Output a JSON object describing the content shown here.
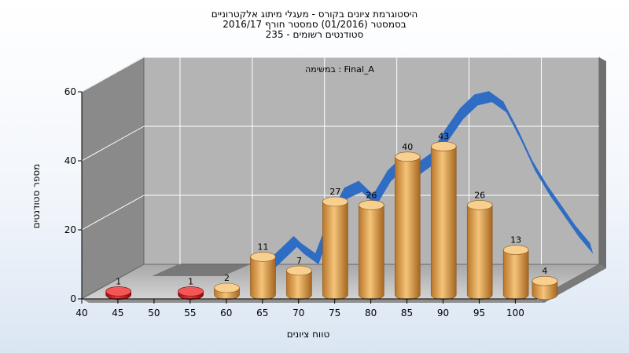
{
  "chart_data": {
    "type": "bar",
    "title_lines": [
      "היסטוגרמת ציונים בקורס - מעגלי מיתוג אלקטרוניים",
      "בסמסטר  (01/2016)  סמסטר חורף 2016/17",
      "סטודנטים רשומים - 235"
    ],
    "annotation": "במשימה : Final_A",
    "xlabel": "טווח ציונים",
    "ylabel": "מספר סטודנטים",
    "ylim": [
      0,
      60
    ],
    "yticks": [
      0,
      20,
      40,
      60
    ],
    "xticks": [
      "40",
      "45",
      "50",
      "55",
      "60",
      "65",
      "70",
      "75",
      "80",
      "85",
      "90",
      "95",
      "100"
    ],
    "bars": [
      {
        "x": 42.5,
        "value": 1,
        "color": "#d41616"
      },
      {
        "x": 52.5,
        "value": 1,
        "color": "#d41616"
      },
      {
        "x": 57.5,
        "value": 2,
        "color": "#e3a44d"
      },
      {
        "x": 62.5,
        "value": 11,
        "color": "#e3a44d"
      },
      {
        "x": 67.5,
        "value": 7,
        "color": "#e3a44d"
      },
      {
        "x": 72.5,
        "value": 27,
        "color": "#e3a44d"
      },
      {
        "x": 77.5,
        "value": 26,
        "color": "#e3a44d"
      },
      {
        "x": 82.5,
        "value": 40,
        "color": "#e3a44d"
      },
      {
        "x": 87.5,
        "value": 43,
        "color": "#e3a44d"
      },
      {
        "x": 92.5,
        "value": 26,
        "color": "#e3a44d"
      },
      {
        "x": 97.5,
        "value": 13,
        "color": "#e3a44d"
      },
      {
        "x": 101.5,
        "value": 4,
        "color": "#e3a44d"
      }
    ],
    "curve": {
      "color": "#2f6cc4",
      "points": [
        [
          59,
          3
        ],
        [
          61,
          6
        ],
        [
          63,
          10
        ],
        [
          64,
          12
        ],
        [
          65,
          10
        ],
        [
          67,
          7
        ],
        [
          69,
          18
        ],
        [
          71,
          26
        ],
        [
          73,
          28
        ],
        [
          75,
          24
        ],
        [
          77,
          31
        ],
        [
          79,
          35
        ],
        [
          81,
          33
        ],
        [
          83,
          36
        ],
        [
          85,
          43
        ],
        [
          87,
          49
        ],
        [
          89,
          53
        ],
        [
          91,
          54
        ],
        [
          93,
          51
        ],
        [
          95,
          43
        ],
        [
          97,
          34
        ],
        [
          99,
          27
        ],
        [
          101,
          21
        ],
        [
          103,
          15
        ],
        [
          105,
          10
        ]
      ]
    },
    "grid": true,
    "colors": {
      "wall": "#b4b4b4",
      "side_wall": "#8a8a8a",
      "floor": "#c4c4c4",
      "accent_bar": "#e3a44d",
      "low_bar": "#d41616",
      "curve": "#2f6cc4"
    }
  }
}
